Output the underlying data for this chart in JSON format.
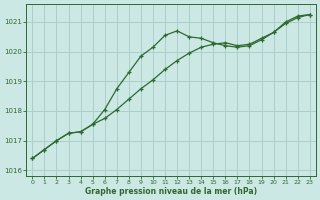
{
  "line1_x": [
    0,
    1,
    2,
    3,
    4,
    5,
    6,
    7,
    8,
    9,
    10,
    11,
    12,
    13,
    14,
    15,
    16,
    17,
    18,
    19,
    20,
    21,
    22,
    23
  ],
  "line1_y": [
    1016.4,
    1016.7,
    1017.0,
    1017.25,
    1017.3,
    1017.55,
    1017.75,
    1018.05,
    1018.4,
    1018.75,
    1019.05,
    1019.4,
    1019.7,
    1019.95,
    1020.15,
    1020.25,
    1020.3,
    1020.2,
    1020.25,
    1020.45,
    1020.65,
    1020.95,
    1021.15,
    1021.25
  ],
  "line2_x": [
    0,
    1,
    2,
    3,
    4,
    5,
    6,
    7,
    8,
    9,
    10,
    11,
    12,
    13,
    14,
    15,
    16,
    17,
    18,
    19,
    20,
    21,
    22,
    23
  ],
  "line2_y": [
    1016.4,
    1016.7,
    1017.0,
    1017.25,
    1017.3,
    1017.55,
    1018.05,
    1018.75,
    1019.3,
    1019.85,
    1020.15,
    1020.55,
    1020.7,
    1020.5,
    1020.45,
    1020.3,
    1020.2,
    1020.15,
    1020.2,
    1020.4,
    1020.65,
    1021.0,
    1021.2,
    1021.25
  ],
  "bg_color": "#cce8e4",
  "grid_color": "#aacfcb",
  "line_color": "#2d6a2d",
  "xlabel": "Graphe pression niveau de la mer (hPa)",
  "xlim": [
    -0.5,
    23.5
  ],
  "ylim": [
    1015.8,
    1021.6
  ],
  "yticks": [
    1016,
    1017,
    1018,
    1019,
    1020,
    1021
  ],
  "xticks": [
    0,
    1,
    2,
    3,
    4,
    5,
    6,
    7,
    8,
    9,
    10,
    11,
    12,
    13,
    14,
    15,
    16,
    17,
    18,
    19,
    20,
    21,
    22,
    23
  ]
}
